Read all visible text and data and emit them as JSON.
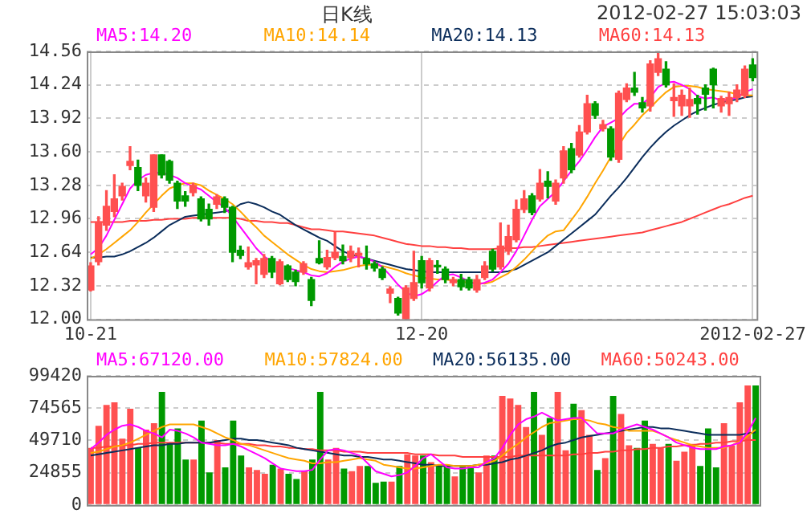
{
  "chart_data": [
    {
      "type": "candlestick",
      "title": "日K线",
      "annotations": [
        "2012-02-27 15:03:03"
      ],
      "categories": [
        "10-21",
        null,
        null,
        null,
        null,
        null,
        null,
        null,
        null,
        null,
        null,
        null,
        null,
        null,
        null,
        null,
        null,
        null,
        null,
        null,
        null,
        null,
        null,
        null,
        null,
        null,
        null,
        null,
        null,
        null,
        null,
        null,
        null,
        null,
        null,
        null,
        null,
        null,
        null,
        null,
        null,
        null,
        "12-20",
        null,
        null,
        null,
        null,
        null,
        null,
        null,
        null,
        null,
        null,
        null,
        null,
        null,
        null,
        null,
        null,
        null,
        null,
        null,
        null,
        null,
        null,
        null,
        null,
        null,
        null,
        null,
        null,
        null,
        null,
        null,
        null,
        null,
        null,
        null,
        null,
        null,
        null,
        null,
        null,
        null,
        "2012-02-27"
      ],
      "ohlc": [
        [
          12.28,
          12.54,
          12.27,
          12.51
        ],
        [
          12.55,
          12.98,
          12.52,
          12.93
        ],
        [
          12.9,
          13.23,
          12.85,
          13.08
        ],
        [
          13.03,
          13.38,
          12.98,
          13.15
        ],
        [
          13.18,
          13.3,
          13.14,
          13.27
        ],
        [
          13.47,
          13.65,
          13.43,
          13.51
        ],
        [
          13.45,
          13.52,
          13.23,
          13.28
        ],
        [
          13.18,
          13.35,
          13.12,
          13.3
        ],
        [
          13.07,
          13.57,
          13.03,
          13.57
        ],
        [
          13.57,
          13.57,
          13.35,
          13.38
        ],
        [
          13.51,
          13.52,
          13.3,
          13.33
        ],
        [
          13.3,
          13.32,
          13.06,
          13.13
        ],
        [
          13.18,
          13.22,
          13.08,
          13.13
        ],
        [
          13.21,
          13.3,
          13.18,
          13.28
        ],
        [
          13.15,
          13.17,
          12.94,
          12.96
        ],
        [
          13.05,
          13.1,
          12.9,
          12.96
        ],
        [
          13.1,
          13.19,
          13.06,
          13.17
        ],
        [
          13.15,
          13.17,
          13.02,
          13.07
        ],
        [
          13.07,
          13.08,
          12.55,
          12.64
        ],
        [
          12.66,
          12.7,
          12.58,
          12.61
        ],
        [
          12.5,
          12.69,
          12.48,
          12.54
        ],
        [
          12.52,
          12.58,
          12.34,
          12.56
        ],
        [
          12.43,
          12.62,
          12.4,
          12.58
        ],
        [
          12.58,
          12.6,
          12.4,
          12.45
        ],
        [
          12.34,
          12.57,
          12.33,
          12.55
        ],
        [
          12.51,
          12.52,
          12.36,
          12.38
        ],
        [
          12.45,
          12.47,
          12.32,
          12.36
        ],
        [
          12.45,
          12.55,
          12.43,
          12.53
        ],
        [
          12.38,
          12.4,
          12.13,
          12.18
        ],
        [
          12.58,
          12.75,
          12.53,
          12.54
        ],
        [
          12.5,
          12.66,
          12.48,
          12.59
        ],
        [
          12.59,
          12.83,
          12.57,
          12.64
        ],
        [
          12.6,
          12.71,
          12.53,
          12.56
        ],
        [
          12.59,
          12.7,
          12.55,
          12.65
        ],
        [
          12.61,
          12.68,
          12.5,
          12.63
        ],
        [
          12.58,
          12.7,
          12.48,
          12.53
        ],
        [
          12.53,
          12.55,
          12.46,
          12.49
        ],
        [
          12.48,
          12.5,
          12.38,
          12.4
        ],
        [
          12.25,
          12.31,
          12.16,
          12.29
        ],
        [
          12.2,
          12.21,
          12.04,
          12.06
        ],
        [
          12.0,
          12.32,
          12.0,
          12.3
        ],
        [
          12.2,
          12.65,
          12.18,
          12.35
        ],
        [
          12.56,
          12.6,
          12.3,
          12.35
        ],
        [
          12.3,
          12.58,
          12.27,
          12.56
        ],
        [
          12.51,
          12.56,
          12.44,
          12.5
        ],
        [
          12.48,
          12.5,
          12.35,
          12.38
        ],
        [
          12.35,
          12.4,
          12.32,
          12.38
        ],
        [
          12.38,
          12.43,
          12.28,
          12.31
        ],
        [
          12.38,
          12.4,
          12.28,
          12.3
        ],
        [
          12.28,
          12.42,
          12.26,
          12.38
        ],
        [
          12.4,
          12.55,
          12.38,
          12.51
        ],
        [
          12.65,
          12.67,
          12.46,
          12.48
        ],
        [
          12.5,
          12.92,
          12.48,
          12.7
        ],
        [
          12.65,
          12.9,
          12.62,
          12.79
        ],
        [
          12.76,
          13.14,
          12.74,
          13.05
        ],
        [
          13.05,
          13.23,
          13.02,
          13.15
        ],
        [
          13.18,
          13.2,
          13.0,
          13.02
        ],
        [
          13.15,
          13.43,
          13.13,
          13.3
        ],
        [
          13.32,
          13.41,
          13.16,
          13.27
        ],
        [
          13.13,
          13.33,
          13.1,
          13.3
        ],
        [
          13.35,
          13.65,
          13.3,
          13.61
        ],
        [
          13.63,
          13.68,
          13.4,
          13.43
        ],
        [
          13.57,
          13.85,
          13.55,
          13.79
        ],
        [
          13.79,
          14.14,
          13.77,
          14.06
        ],
        [
          14.06,
          14.08,
          13.92,
          13.95
        ],
        [
          13.82,
          13.9,
          13.8,
          13.86
        ],
        [
          13.82,
          13.84,
          13.52,
          13.55
        ],
        [
          13.53,
          14.18,
          13.5,
          14.16
        ],
        [
          14.1,
          14.25,
          14.08,
          14.21
        ],
        [
          14.21,
          14.36,
          14.14,
          14.17
        ],
        [
          14.07,
          14.12,
          13.98,
          14.02
        ],
        [
          14.04,
          14.47,
          13.99,
          14.44
        ],
        [
          14.36,
          14.55,
          14.33,
          14.49
        ],
        [
          14.39,
          14.46,
          14.22,
          14.24
        ],
        [
          14.09,
          14.25,
          13.94,
          14.12
        ],
        [
          14.04,
          14.19,
          13.95,
          14.14
        ],
        [
          14.04,
          14.21,
          13.93,
          14.1
        ],
        [
          14.11,
          14.14,
          13.96,
          14.06
        ],
        [
          14.21,
          14.24,
          14.0,
          14.15
        ],
        [
          14.39,
          14.4,
          14.02,
          14.24
        ],
        [
          14.04,
          14.13,
          13.98,
          14.11
        ],
        [
          14.06,
          14.17,
          13.95,
          14.12
        ],
        [
          14.12,
          14.24,
          14.08,
          14.19
        ],
        [
          14.14,
          14.42,
          14.12,
          14.39
        ],
        [
          14.43,
          14.49,
          14.28,
          14.31
        ]
      ],
      "colors": [
        "#ff5050",
        "#ff5050",
        "#ff5050",
        "#ff5050",
        "#ff5050",
        "#ff5050",
        "#009900",
        "#ff5050",
        "#ff5050",
        "#009900",
        "#009900",
        "#009900",
        "#009900",
        "#ff5050",
        "#009900",
        "#009900",
        "#ff5050",
        "#009900",
        "#009900",
        "#009900",
        "#ff5050",
        "#ff5050",
        "#ff5050",
        "#009900",
        "#ff5050",
        "#009900",
        "#009900",
        "#ff5050",
        "#009900",
        "#009900",
        "#ff5050",
        "#ff5050",
        "#009900",
        "#ff5050",
        "#ff5050",
        "#009900",
        "#009900",
        "#009900",
        "#ff5050",
        "#009900",
        "#ff5050",
        "#ff5050",
        "#009900",
        "#ff5050",
        "#009900",
        "#009900",
        "#ff5050",
        "#009900",
        "#009900",
        "#ff5050",
        "#ff5050",
        "#009900",
        "#ff5050",
        "#ff5050",
        "#ff5050",
        "#ff5050",
        "#009900",
        "#ff5050",
        "#009900",
        "#ff5050",
        "#ff5050",
        "#009900",
        "#ff5050",
        "#ff5050",
        "#009900",
        "#ff5050",
        "#009900",
        "#ff5050",
        "#ff5050",
        "#009900",
        "#009900",
        "#ff5050",
        "#ff5050",
        "#009900",
        "#ff5050",
        "#ff5050",
        "#ff5050",
        "#009900",
        "#009900",
        "#009900",
        "#ff5050",
        "#ff5050",
        "#ff5050",
        "#ff5050",
        "#009900"
      ],
      "series": [
        {
          "type": "line",
          "name": "MA5:14.20",
          "color": "#ff00ff",
          "values": [
            12.62,
            12.68,
            12.8,
            12.95,
            13.1,
            13.25,
            13.33,
            13.38,
            13.4,
            13.4,
            13.38,
            13.35,
            13.3,
            13.27,
            13.24,
            13.18,
            13.12,
            13.07,
            12.98,
            12.88,
            12.78,
            12.68,
            12.6,
            12.55,
            null,
            12.49,
            12.47,
            12.45,
            12.42,
            12.41,
            12.44,
            12.5,
            12.55,
            12.58,
            12.6,
            12.58,
            12.55,
            12.5,
            12.42,
            12.33,
            12.26,
            12.22,
            12.24,
            12.29,
            12.36,
            12.42,
            12.43,
            12.4,
            12.36,
            12.33,
            12.35,
            12.38,
            12.45,
            12.53,
            12.65,
            12.8,
            12.95,
            13.08,
            13.15,
            13.22,
            13.32,
            13.42,
            13.51,
            13.62,
            13.74,
            13.84,
            13.88,
            13.92,
            14.0,
            14.06,
            14.06,
            14.12,
            14.22,
            14.26,
            14.27,
            14.24,
            14.2,
            14.13,
            14.11,
            14.12,
            14.09,
            14.1,
            14.12,
            14.17,
            14.2
          ]
        },
        {
          "type": "line",
          "name": "MA10:14.14",
          "color": "#ffa500",
          "values": [
            12.58,
            12.62,
            12.67,
            12.73,
            12.79,
            12.85,
            12.93,
            13.02,
            13.1,
            13.18,
            13.25,
            13.28,
            13.3,
            13.3,
            13.28,
            13.23,
            13.19,
            13.15,
            13.1,
            13.03,
            12.95,
            12.88,
            12.8,
            12.74,
            12.68,
            12.62,
            12.57,
            12.52,
            12.48,
            12.46,
            12.45,
            12.46,
            12.47,
            12.49,
            12.51,
            12.52,
            12.52,
            12.51,
            12.49,
            12.47,
            12.44,
            12.42,
            12.4,
            12.39,
            12.38,
            12.38,
            12.37,
            12.36,
            12.35,
            12.35,
            12.34,
            12.36,
            12.4,
            12.44,
            12.5,
            12.57,
            12.65,
            12.73,
            12.8,
            12.84,
            12.85,
            12.95,
            13.05,
            13.17,
            13.3,
            13.42,
            13.55,
            13.66,
            13.78,
            13.86,
            13.95,
            14.02,
            14.1,
            14.17,
            14.22,
            14.23,
            14.23,
            14.22,
            14.2,
            14.19,
            14.18,
            14.17,
            14.15,
            14.14,
            14.14
          ]
        },
        {
          "type": "line",
          "name": "MA20:14.13",
          "color": "#0b2d5b",
          "values": [
            12.59,
            12.59,
            12.6,
            12.6,
            12.62,
            12.65,
            12.69,
            12.73,
            12.78,
            12.84,
            12.9,
            12.94,
            12.98,
            12.99,
            13.0,
            13.01,
            13.02,
            13.03,
            13.05,
            13.1,
            13.12,
            13.1,
            13.07,
            13.03,
            13.0,
            12.95,
            12.9,
            12.86,
            12.82,
            12.78,
            12.75,
            12.7,
            12.65,
            12.62,
            12.6,
            12.58,
            12.56,
            12.54,
            12.52,
            12.5,
            12.48,
            12.47,
            12.46,
            12.45,
            12.45,
            12.45,
            12.45,
            12.45,
            12.45,
            12.45,
            12.45,
            12.45,
            12.45,
            12.46,
            12.48,
            12.52,
            12.56,
            12.6,
            12.64,
            12.7,
            12.76,
            12.82,
            12.88,
            12.94,
            13.0,
            13.09,
            13.18,
            13.26,
            13.35,
            13.45,
            13.55,
            13.64,
            13.72,
            13.79,
            13.85,
            13.9,
            13.95,
            13.99,
            14.02,
            14.05,
            14.07,
            14.09,
            14.1,
            14.12,
            14.13
          ]
        },
        {
          "type": "line",
          "name": "MA60:14.13",
          "color": "#ff4040",
          "values": [
            12.93,
            12.93,
            12.93,
            12.93,
            12.93,
            12.94,
            12.94,
            12.94,
            12.95,
            12.95,
            12.96,
            12.96,
            12.96,
            12.97,
            12.97,
            12.97,
            12.97,
            12.97,
            12.97,
            12.96,
            12.94,
            12.94,
            12.93,
            12.93,
            12.92,
            12.92,
            12.9,
            12.88,
            12.86,
            12.86,
            12.85,
            12.84,
            12.84,
            12.83,
            12.82,
            12.81,
            12.8,
            12.78,
            12.76,
            12.74,
            12.72,
            12.71,
            12.7,
            12.7,
            12.69,
            12.69,
            12.68,
            12.68,
            12.67,
            12.67,
            12.67,
            12.67,
            12.68,
            12.68,
            12.68,
            12.69,
            12.69,
            12.7,
            12.71,
            12.72,
            12.73,
            12.74,
            12.75,
            12.76,
            12.77,
            12.78,
            12.79,
            12.8,
            12.81,
            12.82,
            12.83,
            12.85,
            12.87,
            12.89,
            12.91,
            12.93,
            12.96,
            12.99,
            13.02,
            13.05,
            13.08,
            13.1,
            13.13,
            13.16,
            13.18
          ]
        }
      ],
      "ylim": [
        12.0,
        14.56
      ],
      "yticks": [
        {
          "value": 12.0,
          "label": "12.00"
        },
        {
          "value": 12.32,
          "label": "12.32"
        },
        {
          "value": 12.64,
          "label": "12.64"
        },
        {
          "value": 12.96,
          "label": "12.96"
        },
        {
          "value": 13.28,
          "label": "13.28"
        },
        {
          "value": 13.6,
          "label": "13.60"
        },
        {
          "value": 13.92,
          "label": "13.92"
        },
        {
          "value": 14.24,
          "label": "14.24"
        },
        {
          "value": 14.56,
          "label": "14.56"
        }
      ],
      "grid": true,
      "legend": "top",
      "marker": "none"
    },
    {
      "type": "bar",
      "tick_labels": "y",
      "categories": [
        null,
        null,
        null,
        null,
        null,
        null,
        null,
        null,
        null,
        null,
        null,
        null,
        null,
        null,
        null,
        null,
        null,
        null,
        null,
        null,
        null,
        null,
        null,
        null,
        null,
        null,
        null,
        null,
        null,
        null,
        null,
        null,
        null,
        null,
        null,
        null,
        null,
        null,
        null,
        null,
        null,
        null,
        null,
        null,
        null,
        null,
        null,
        null,
        null,
        null,
        null,
        null,
        null,
        null,
        null,
        null,
        null,
        null,
        null,
        null,
        null,
        null,
        null,
        null,
        null,
        null,
        null,
        null,
        null,
        null,
        null,
        null,
        null,
        null,
        null,
        null,
        null,
        null,
        null,
        null,
        null,
        null,
        null,
        null,
        null
      ],
      "series": [
        {
          "type": "bar",
          "values": [
            44000,
            61000,
            77000,
            79000,
            51000,
            74000,
            44000,
            58000,
            63000,
            87000,
            48000,
            59000,
            35000,
            35000,
            65000,
            25000,
            50000,
            29000,
            65000,
            38000,
            29000,
            27000,
            24000,
            31000,
            28000,
            24000,
            20000,
            26000,
            35000,
            87000,
            35000,
            44000,
            28000,
            26000,
            30000,
            30000,
            17000,
            18000,
            18000,
            30000,
            39000,
            38000,
            38000,
            33000,
            30000,
            31000,
            22000,
            30000,
            30000,
            25000,
            38000,
            38000,
            84000,
            82000,
            77000,
            60000,
            87000,
            54000,
            67000,
            87000,
            42000,
            78000,
            73000,
            54000,
            27000,
            36000,
            84000,
            70000,
            46000,
            44000,
            65000,
            47000,
            44000,
            47000,
            34000,
            41000,
            47000,
            30000,
            59000,
            29000,
            63000,
            46000,
            79000,
            92000,
            92000
          ],
          "colors": [
            "#ff5050",
            "#ff5050",
            "#ff5050",
            "#ff5050",
            "#ff5050",
            "#ff5050",
            "#009900",
            "#ff5050",
            "#ff5050",
            "#009900",
            "#009900",
            "#009900",
            "#009900",
            "#ff5050",
            "#009900",
            "#009900",
            "#ff5050",
            "#009900",
            "#009900",
            "#009900",
            "#ff5050",
            "#ff5050",
            "#ff5050",
            "#009900",
            "#ff5050",
            "#009900",
            "#009900",
            "#ff5050",
            "#009900",
            "#009900",
            "#ff5050",
            "#ff5050",
            "#009900",
            "#ff5050",
            "#ff5050",
            "#009900",
            "#009900",
            "#009900",
            "#ff5050",
            "#009900",
            "#ff5050",
            "#ff5050",
            "#009900",
            "#ff5050",
            "#009900",
            "#009900",
            "#ff5050",
            "#009900",
            "#009900",
            "#ff5050",
            "#ff5050",
            "#009900",
            "#ff5050",
            "#ff5050",
            "#ff5050",
            "#ff5050",
            "#009900",
            "#ff5050",
            "#009900",
            "#ff5050",
            "#ff5050",
            "#009900",
            "#ff5050",
            "#ff5050",
            "#009900",
            "#ff5050",
            "#009900",
            "#ff5050",
            "#ff5050",
            "#009900",
            "#009900",
            "#ff5050",
            "#ff5050",
            "#009900",
            "#ff5050",
            "#ff5050",
            "#ff5050",
            "#009900",
            "#009900",
            "#009900",
            "#ff5050",
            "#ff5050",
            "#ff5050",
            "#ff5050",
            "#009900"
          ]
        },
        {
          "type": "line",
          "name": "MA5:67120.00",
          "color": "#ff00ff",
          "values": [
            43000,
            48000,
            54000,
            58000,
            61000,
            62000,
            60000,
            57000,
            55000,
            52000,
            58000,
            57000,
            55000,
            52000,
            48000,
            47000,
            46000,
            46000,
            47000,
            45000,
            42000,
            39000,
            36000,
            32000,
            28000,
            27000,
            26000,
            26000,
            27000,
            35000,
            42000,
            43000,
            42000,
            40000,
            38000,
            32000,
            26000,
            24000,
            22000,
            23000,
            25000,
            30000,
            36000,
            39000,
            34000,
            29000,
            28000,
            28000,
            29000,
            29000,
            33000,
            36000,
            44000,
            54000,
            62000,
            66000,
            68000,
            71000,
            68000,
            65000,
            66000,
            67000,
            67000,
            61000,
            55000,
            55000,
            55000,
            58000,
            60000,
            62000,
            60000,
            58000,
            55000,
            52000,
            48000,
            46000,
            44000,
            43000,
            43000,
            43000,
            45000,
            46000,
            48000,
            56000,
            67000
          ]
        },
        {
          "type": "line",
          "name": "MA10:57824.00",
          "color": "#ffa500",
          "values": [
            40000,
            41000,
            43000,
            45000,
            46000,
            48000,
            51000,
            54000,
            57000,
            60000,
            62000,
            62000,
            62000,
            62000,
            60000,
            58000,
            55000,
            52000,
            50000,
            47000,
            46000,
            44000,
            42000,
            40000,
            38000,
            36000,
            35000,
            34000,
            32000,
            32000,
            33000,
            33000,
            34000,
            35000,
            36000,
            35000,
            34000,
            31000,
            30000,
            29000,
            28000,
            28000,
            29000,
            30000,
            31000,
            31000,
            30000,
            30000,
            30000,
            31000,
            32000,
            34000,
            38000,
            43000,
            47000,
            52000,
            56000,
            60000,
            63000,
            64000,
            65000,
            66000,
            66000,
            65000,
            63000,
            62000,
            60000,
            59000,
            57000,
            57000,
            57000,
            57000,
            55000,
            52000,
            50000,
            48000,
            46000,
            45000,
            44000,
            44000,
            44000,
            46000,
            49000,
            53000,
            58000
          ]
        },
        {
          "type": "line",
          "name": "MA20:56135.00",
          "color": "#0b2d5b",
          "values": [
            38000,
            39000,
            40000,
            41000,
            42000,
            43000,
            44000,
            45000,
            46000,
            46000,
            47000,
            47000,
            48000,
            48000,
            48000,
            48000,
            49000,
            50000,
            51000,
            51000,
            50000,
            50000,
            49000,
            48000,
            47000,
            46000,
            44000,
            43000,
            42000,
            41000,
            40000,
            39000,
            38000,
            38000,
            37000,
            37000,
            36000,
            35000,
            35000,
            34000,
            33000,
            32000,
            31000,
            31000,
            30000,
            30000,
            30000,
            30000,
            30000,
            31000,
            31000,
            32000,
            33000,
            35000,
            36000,
            38000,
            40000,
            42000,
            45000,
            47000,
            48000,
            50000,
            52000,
            53000,
            54000,
            55000,
            56000,
            57000,
            58000,
            59000,
            60000,
            60000,
            59000,
            59000,
            58000,
            57000,
            56000,
            55000,
            54000,
            54000,
            54000,
            54000,
            54000,
            55000,
            56000
          ]
        },
        {
          "type": "line",
          "name": "MA60:50243.00",
          "color": "#ff4040",
          "values": [
            44000,
            44000,
            45000,
            45000,
            46000,
            46000,
            47000,
            47000,
            48000,
            48000,
            48000,
            48000,
            48000,
            48000,
            48000,
            48000,
            48000,
            47000,
            47000,
            47000,
            47000,
            46000,
            46000,
            45000,
            45000,
            44000,
            44000,
            43000,
            43000,
            42000,
            42000,
            42000,
            41000,
            41000,
            41000,
            40000,
            40000,
            40000,
            40000,
            40000,
            40000,
            39000,
            39000,
            39000,
            38000,
            38000,
            38000,
            37000,
            37000,
            37000,
            37000,
            37000,
            37000,
            37000,
            38000,
            38000,
            38000,
            38000,
            38000,
            38000,
            38000,
            39000,
            39000,
            40000,
            40000,
            41000,
            41000,
            42000,
            42000,
            43000,
            43000,
            44000,
            44000,
            45000,
            45000,
            46000,
            46000,
            47000,
            47000,
            48000,
            48000,
            49000,
            49000,
            50000,
            50000
          ]
        }
      ],
      "ylim": [
        0,
        99420
      ],
      "yticks": [
        0,
        24855,
        49710,
        74565,
        99420
      ],
      "grid": true,
      "legend": "top",
      "marker": "none"
    }
  ]
}
